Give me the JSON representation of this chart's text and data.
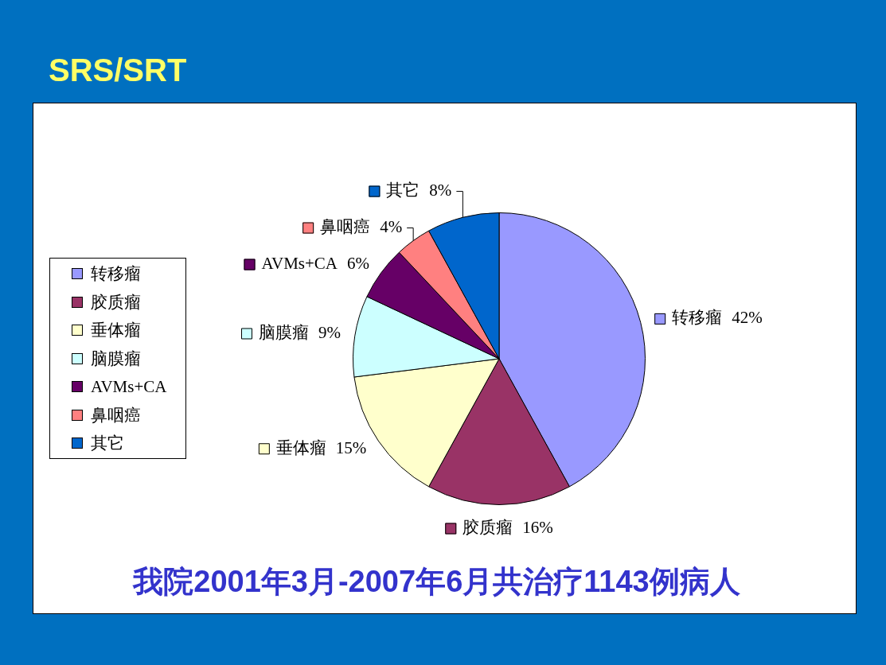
{
  "chart_data": {
    "type": "pie",
    "title": "SRS/SRT",
    "categories": [
      "转移瘤",
      "胶质瘤",
      "垂体瘤",
      "脑膜瘤",
      "AVMs+CA",
      "鼻咽癌",
      "其它"
    ],
    "values": [
      42,
      16,
      15,
      9,
      6,
      4,
      8
    ],
    "value_labels": [
      "42%",
      "16%",
      "15%",
      "9%",
      "6%",
      "4%",
      "8%"
    ],
    "colors": [
      "#9999ff",
      "#993366",
      "#ffffcc",
      "#ccffff",
      "#660066",
      "#ff8080",
      "#0066cc"
    ],
    "legend": "left",
    "annotations": [
      "我院2001年3月-2007年6月共治疗1143例病人"
    ]
  }
}
